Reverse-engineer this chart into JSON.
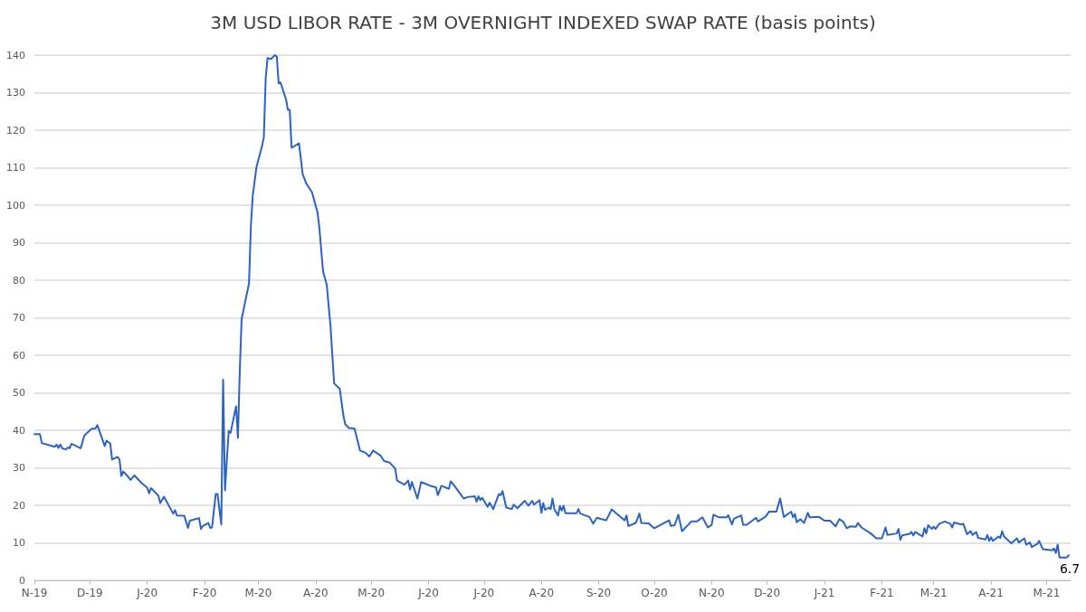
{
  "chart_data": {
    "type": "line",
    "title": "3M USD LIBOR RATE - 3M OVERNIGHT INDEXED SWAP RATE (basis points)",
    "x": [
      "2019-11-01",
      "2019-11-04",
      "2019-11-05",
      "2019-11-12",
      "2019-11-13",
      "2019-11-14",
      "2019-11-15",
      "2019-11-16",
      "2019-11-18",
      "2019-11-19",
      "2019-11-20",
      "2019-11-21",
      "2019-11-26",
      "2019-11-28",
      "2019-12-02",
      "2019-12-04",
      "2019-12-05",
      "2019-12-09",
      "2019-12-10",
      "2019-12-12",
      "2019-12-13",
      "2019-12-16",
      "2019-12-17",
      "2019-12-18",
      "2019-12-19",
      "2019-12-21",
      "2019-12-23",
      "2019-12-25",
      "2019-12-29",
      "2020-01-01",
      "2020-01-02",
      "2020-01-03",
      "2020-01-07",
      "2020-01-08",
      "2020-01-10",
      "2020-01-15",
      "2020-01-16",
      "2020-01-17",
      "2020-01-21",
      "2020-01-23",
      "2020-01-24",
      "2020-01-29",
      "2020-01-30",
      "2020-01-31",
      "2020-02-03",
      "2020-02-04",
      "2020-02-05",
      "2020-02-07",
      "2020-02-08",
      "2020-02-10",
      "2020-02-11",
      "2020-02-12",
      "2020-02-14",
      "2020-02-15",
      "2020-02-18",
      "2020-02-19",
      "2020-02-20",
      "2020-02-21",
      "2020-02-25",
      "2020-02-26",
      "2020-02-27",
      "2020-02-29",
      "2020-03-03",
      "2020-03-04",
      "2020-03-05",
      "2020-03-06",
      "2020-03-08",
      "2020-03-10",
      "2020-03-11",
      "2020-03-12",
      "2020-03-13",
      "2020-03-16",
      "2020-03-17",
      "2020-03-18",
      "2020-03-19",
      "2020-03-23",
      "2020-03-25",
      "2020-03-27",
      "2020-03-30",
      "2020-04-02",
      "2020-04-03",
      "2020-04-05",
      "2020-04-07",
      "2020-04-09",
      "2020-04-11",
      "2020-04-14",
      "2020-04-16",
      "2020-04-17",
      "2020-04-19",
      "2020-04-22",
      "2020-04-25",
      "2020-04-28",
      "2020-04-30",
      "2020-05-02",
      "2020-05-06",
      "2020-05-08",
      "2020-05-11",
      "2020-05-14",
      "2020-05-15",
      "2020-05-19",
      "2020-05-21",
      "2020-05-22",
      "2020-05-23",
      "2020-05-26",
      "2020-05-28",
      "2020-06-02",
      "2020-06-05",
      "2020-06-06",
      "2020-06-08",
      "2020-06-12",
      "2020-06-13",
      "2020-06-15",
      "2020-06-20",
      "2020-06-22",
      "2020-06-26",
      "2020-06-27",
      "2020-06-28",
      "2020-06-29",
      "2020-06-30",
      "2020-07-03",
      "2020-07-04",
      "2020-07-06",
      "2020-07-09",
      "2020-07-10",
      "2020-07-11",
      "2020-07-13",
      "2020-07-16",
      "2020-07-17",
      "2020-07-19",
      "2020-07-23",
      "2020-07-25",
      "2020-07-27",
      "2020-07-28",
      "2020-07-31",
      "2020-08-01",
      "2020-08-02",
      "2020-08-03",
      "2020-08-05",
      "2020-08-06",
      "2020-08-07",
      "2020-08-08",
      "2020-08-10",
      "2020-08-11",
      "2020-08-12",
      "2020-08-13",
      "2020-08-14",
      "2020-08-20",
      "2020-08-21",
      "2020-08-22",
      "2020-08-27",
      "2020-08-29",
      "2020-08-31",
      "2020-09-02",
      "2020-09-05",
      "2020-09-08",
      "2020-09-13",
      "2020-09-15",
      "2020-09-16",
      "2020-09-17",
      "2020-09-21",
      "2020-09-23",
      "2020-09-24",
      "2020-09-28",
      "2020-09-30",
      "2020-10-01",
      "2020-10-09",
      "2020-10-10",
      "2020-10-12",
      "2020-10-14",
      "2020-10-16",
      "2020-10-21",
      "2020-10-24",
      "2020-10-27",
      "2020-10-30",
      "2020-11-01",
      "2020-11-02",
      "2020-11-05",
      "2020-11-09",
      "2020-11-10",
      "2020-11-12",
      "2020-11-13",
      "2020-11-17",
      "2020-11-18",
      "2020-11-20",
      "2020-11-25",
      "2020-11-26",
      "2020-11-30",
      "2020-12-02",
      "2020-12-06",
      "2020-12-08",
      "2020-12-10",
      "2020-12-14",
      "2020-12-15",
      "2020-12-16",
      "2020-12-17",
      "2020-12-19",
      "2020-12-21",
      "2020-12-23",
      "2020-12-24",
      "2020-12-29",
      "2021-01-01",
      "2021-01-04",
      "2021-01-07",
      "2021-01-09",
      "2021-01-11",
      "2021-01-13",
      "2021-01-15",
      "2021-01-18",
      "2021-01-19",
      "2021-01-21",
      "2021-01-26",
      "2021-01-29",
      "2021-02-01",
      "2021-02-03",
      "2021-02-04",
      "2021-02-09",
      "2021-02-10",
      "2021-02-11",
      "2021-02-12",
      "2021-02-16",
      "2021-02-17",
      "2021-02-18",
      "2021-02-19",
      "2021-02-23",
      "2021-02-24",
      "2021-02-25",
      "2021-02-26",
      "2021-02-28",
      "2021-03-01",
      "2021-03-02",
      "2021-03-04",
      "2021-03-07",
      "2021-03-10",
      "2021-03-11",
      "2021-03-12",
      "2021-03-16",
      "2021-03-17",
      "2021-03-19",
      "2021-03-21",
      "2021-03-22",
      "2021-03-24",
      "2021-03-25",
      "2021-03-29",
      "2021-03-30",
      "2021-03-31",
      "2021-04-01",
      "2021-04-02",
      "2021-04-05",
      "2021-04-06",
      "2021-04-07",
      "2021-04-08",
      "2021-04-12",
      "2021-04-15",
      "2021-04-16",
      "2021-04-19",
      "2021-04-20",
      "2021-04-22",
      "2021-04-23",
      "2021-04-26",
      "2021-04-27",
      "2021-04-29",
      "2021-05-04",
      "2021-05-05",
      "2021-05-06",
      "2021-05-07",
      "2021-05-08",
      "2021-05-12",
      "2021-05-13"
    ],
    "series": [
      {
        "color": "#2a62c6",
        "values": [
          39.0,
          39.0,
          36.6,
          35.6,
          36.2,
          35.3,
          36.2,
          35.2,
          34.9,
          35.4,
          35.2,
          36.4,
          35.2,
          38.6,
          40.4,
          40.5,
          41.4,
          35.8,
          37.2,
          36.5,
          32.2,
          32.9,
          32.2,
          27.8,
          29.0,
          28.0,
          26.8,
          28.0,
          25.9,
          24.7,
          23.2,
          24.6,
          22.6,
          20.6,
          22.3,
          17.8,
          18.7,
          17.3,
          17.2,
          14.0,
          15.9,
          16.6,
          13.7,
          14.5,
          15.3,
          14.0,
          14.1,
          23.0,
          23.0,
          14.9,
          53.5,
          24.0,
          39.8,
          39.3,
          46.4,
          38.0,
          55.9,
          69.6,
          79.2,
          94.5,
          102.5,
          110.1,
          115.7,
          118.1,
          133.8,
          139.2,
          139.0,
          140.0,
          139.6,
          132.5,
          132.7,
          128.2,
          125.4,
          125.4,
          115.3,
          116.5,
          108.3,
          105.7,
          103.5,
          98.1,
          94.0,
          82.4,
          78.8,
          68.0,
          52.5,
          51.1,
          43.9,
          41.6,
          40.6,
          40.5,
          34.6,
          34.0,
          33.0,
          34.6,
          33.3,
          31.8,
          31.4,
          29.8,
          26.6,
          25.5,
          26.6,
          24.2,
          26.2,
          21.8,
          26.2,
          25.2,
          24.8,
          22.7,
          25.2,
          24.4,
          26.4,
          25.2,
          21.8,
          22.2,
          22.4,
          21.0,
          22.4,
          21.4,
          22.0,
          19.6,
          20.7,
          19.0,
          23.0,
          22.7,
          23.8,
          19.4,
          19.0,
          20.2,
          19.2,
          21.2,
          19.9,
          21.2,
          20.2,
          21.4,
          18.0,
          20.6,
          18.8,
          19.4,
          19.0,
          21.8,
          19.0,
          17.3,
          19.8,
          18.6,
          19.9,
          17.9,
          17.9,
          19.0,
          17.8,
          16.9,
          15.1,
          16.7,
          16.4,
          16.0,
          18.9,
          16.8,
          16.0,
          17.3,
          14.5,
          15.3,
          17.8,
          15.3,
          15.2,
          14.3,
          13.9,
          16.0,
          14.5,
          14.7,
          17.5,
          13.1,
          15.7,
          15.7,
          16.8,
          14.1,
          14.8,
          17.5,
          16.8,
          16.8,
          17.4,
          14.9,
          16.4,
          17.3,
          14.8,
          14.8,
          16.7,
          15.7,
          16.9,
          18.3,
          18.3,
          21.8,
          16.9,
          18.3,
          16.8,
          17.7,
          15.5,
          16.3,
          15.3,
          18.0,
          16.8,
          16.9,
          15.9,
          15.9,
          14.4,
          16.3,
          15.7,
          13.9,
          14.4,
          14.3,
          15.3,
          14.1,
          12.5,
          11.2,
          11.2,
          14.1,
          12.1,
          12.5,
          13.7,
          10.8,
          12.0,
          12.4,
          12.9,
          12.0,
          12.9,
          11.7,
          13.9,
          12.5,
          14.7,
          13.7,
          14.3,
          13.7,
          15.1,
          15.7,
          15.1,
          14.1,
          15.4,
          14.9,
          15.1,
          12.3,
          13.1,
          12.1,
          12.9,
          11.3,
          10.9,
          12.1,
          10.5,
          11.5,
          10.5,
          11.7,
          11.3,
          13.1,
          11.7,
          9.9,
          11.2,
          10.1,
          11.2,
          9.5,
          10.1,
          8.9,
          9.7,
          10.5,
          8.3,
          8.0,
          8.5,
          7.3,
          9.5,
          6.1,
          6.1,
          6.7
        ]
      }
    ],
    "xlim": [
      "2019-11-01",
      "2021-05-14"
    ],
    "xticks": [
      {
        "value": "2019-11-01",
        "label": "N-19"
      },
      {
        "value": "2019-12-01",
        "label": "D-19"
      },
      {
        "value": "2020-01-01",
        "label": "J-20"
      },
      {
        "value": "2020-02-01",
        "label": "F-20"
      },
      {
        "value": "2020-03-01",
        "label": "M-20"
      },
      {
        "value": "2020-04-01",
        "label": "A-20"
      },
      {
        "value": "2020-05-01",
        "label": "M-20"
      },
      {
        "value": "2020-06-01",
        "label": "J-20"
      },
      {
        "value": "2020-07-01",
        "label": "J-20"
      },
      {
        "value": "2020-08-01",
        "label": "A-20"
      },
      {
        "value": "2020-09-01",
        "label": "S-20"
      },
      {
        "value": "2020-10-01",
        "label": "O-20"
      },
      {
        "value": "2020-11-01",
        "label": "N-20"
      },
      {
        "value": "2020-12-01",
        "label": "D-20"
      },
      {
        "value": "2021-01-01",
        "label": "J-21"
      },
      {
        "value": "2021-02-01",
        "label": "F-21"
      },
      {
        "value": "2021-03-01",
        "label": "M-21"
      },
      {
        "value": "2021-04-01",
        "label": "A-21"
      },
      {
        "value": "2021-05-01",
        "label": "M-21"
      }
    ],
    "ylim": [
      0,
      140
    ],
    "yticks": [
      0,
      10,
      20,
      30,
      40,
      50,
      60,
      70,
      80,
      90,
      100,
      110,
      120,
      130,
      140
    ],
    "grid": "y",
    "marker": "none",
    "line_style": "solid",
    "annotations": [
      {
        "text": "6.7",
        "x": "2021-05-13",
        "y": 6.7
      }
    ]
  }
}
